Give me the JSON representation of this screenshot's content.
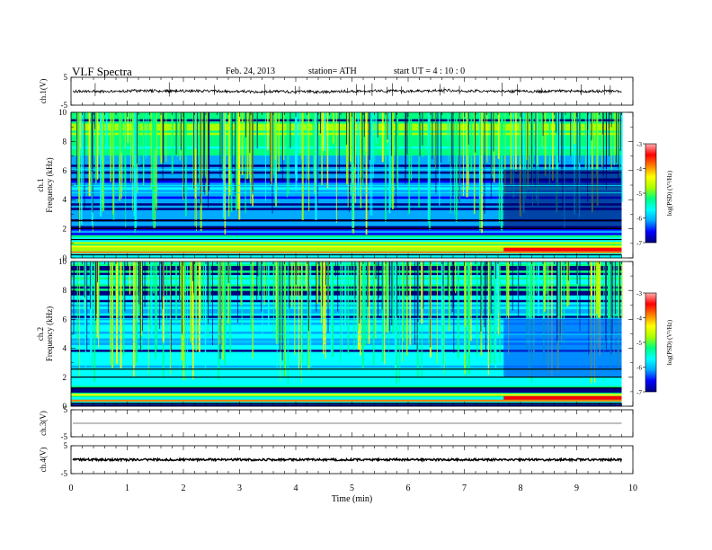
{
  "header": {
    "title": "VLF  Spectra",
    "date": "Feb. 24,  2013",
    "station": "station= ATH",
    "start": "start  UT  =   4  : 10 : 0"
  },
  "chart_data": [
    {
      "type": "line",
      "panel": "ch1-waveform",
      "ylabel": "ch.1(V)",
      "ylim": [
        -5,
        5
      ],
      "yticks": [
        "5",
        "-5"
      ],
      "xlim": [
        0,
        10
      ],
      "baseline": 0,
      "series_color": "#000000"
    },
    {
      "type": "heatmap",
      "panel": "ch1-spectrogram",
      "ylabel_channel": "ch.1",
      "ylabel": "Frequency  (kHz)",
      "ylim": [
        0,
        10
      ],
      "yticks": [
        "0",
        "2",
        "4",
        "6",
        "8",
        "10"
      ],
      "xlim": [
        0,
        10
      ],
      "data_end_min": 9.8,
      "colorbar": {
        "label": "log(PSD) (V²/Hz)",
        "range": [
          -7,
          -3
        ],
        "ticks": [
          "-3",
          "-4",
          "-5",
          "-6",
          "-7"
        ]
      }
    },
    {
      "type": "heatmap",
      "panel": "ch2-spectrogram",
      "ylabel_channel": "ch.2",
      "ylabel": "Frequency  (kHz)",
      "ylim": [
        0,
        10
      ],
      "yticks": [
        "0",
        "2",
        "4",
        "6",
        "8",
        "10"
      ],
      "xlim": [
        0,
        10
      ],
      "data_end_min": 9.8,
      "colorbar": {
        "label": "log(PSD) (V²/Hz)",
        "range": [
          -7,
          -3
        ],
        "ticks": [
          "-3",
          "-4",
          "-5",
          "-6",
          "-7"
        ]
      }
    },
    {
      "type": "line",
      "panel": "ch3-waveform",
      "ylabel": "ch.3(V)",
      "ylim": [
        -5,
        5
      ],
      "yticks": [
        "5",
        "-5"
      ],
      "xlim": [
        0,
        10
      ],
      "baseline": 0,
      "series_color": "#000000"
    },
    {
      "type": "line",
      "panel": "ch4-waveform",
      "ylabel": "ch.4(V)",
      "ylim": [
        -5,
        5
      ],
      "yticks": [
        "5",
        "-5"
      ],
      "xlim": [
        0,
        10
      ],
      "baseline": 0,
      "series_color": "#000000"
    }
  ],
  "x_axis": {
    "label": "Time  (min)",
    "ticks": [
      "0",
      "1",
      "2",
      "3",
      "4",
      "5",
      "6",
      "7",
      "8",
      "9",
      "10"
    ]
  },
  "colormap": [
    "#000080",
    "#0000ff",
    "#00aaff",
    "#00ffff",
    "#00ff80",
    "#aaff00",
    "#ffff00",
    "#ff8000",
    "#ff0000",
    "#ffb0b0"
  ]
}
